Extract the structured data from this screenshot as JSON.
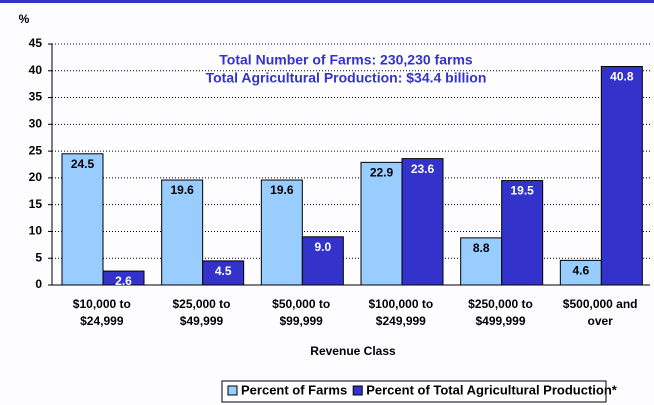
{
  "chart_data": {
    "type": "bar",
    "y_axis_label": "%",
    "x_axis_label": "Revenue Class",
    "annotations": [
      "Total Number of Farms: 230,230 farms",
      "Total Agricultural Production: $34.4 billion"
    ],
    "categories": [
      [
        "$10,000 to",
        "$24,999"
      ],
      [
        "$25,000 to",
        "$49,999"
      ],
      [
        "$50,000 to",
        "$99,999"
      ],
      [
        "$100,000 to",
        "$249,999"
      ],
      [
        "$250,000 to",
        "$499,999"
      ],
      [
        "$500,000 and",
        "over"
      ]
    ],
    "series": [
      {
        "name": "Percent of Farms",
        "color": "#99ccff",
        "values": [
          24.5,
          19.6,
          19.6,
          22.9,
          8.8,
          4.6
        ],
        "value_labels": [
          "24.5",
          "19.6",
          "19.6",
          "22.9",
          "8.8",
          "4.6"
        ]
      },
      {
        "name": "Percent of Total Agricultural Production*",
        "color": "#3333cc",
        "values": [
          2.6,
          4.5,
          9.0,
          23.6,
          19.5,
          40.8
        ],
        "value_labels": [
          "2.6",
          "4.5",
          "9.0",
          "23.6",
          "19.5",
          "40.8"
        ]
      }
    ],
    "ylim": [
      0,
      45
    ],
    "yticks": [
      0,
      5,
      10,
      15,
      20,
      25,
      30,
      35,
      40,
      45
    ],
    "grid": true,
    "legend": "bottom"
  }
}
